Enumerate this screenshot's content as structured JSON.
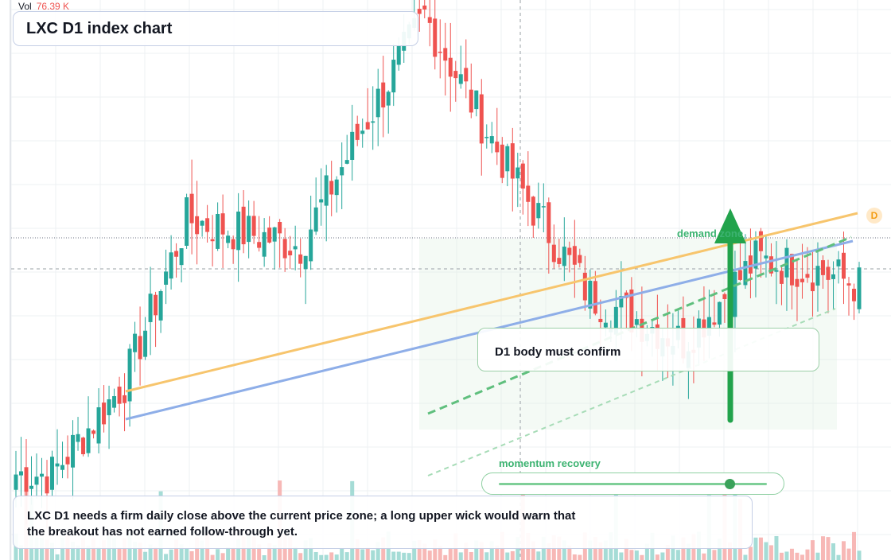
{
  "header": {
    "title": "LXC D1 index chart"
  },
  "volume_legend": {
    "label": "Vol",
    "value": "76.39 K"
  },
  "annotations": {
    "demand_zone_label": "demand zone",
    "confirm_note": "D1 body must confirm",
    "momentum_label": "momentum recovery",
    "momentum_level": 0.86,
    "footer_note": "LXC D1 needs a firm daily close above the current price zone; a long upper wick would warn that the breakout has not earned follow-through yet.",
    "timeframe_badge": "D"
  },
  "colors": {
    "up": "#26a69a",
    "down": "#ef5350",
    "orange_line": "#f7c56d",
    "blue_line": "#8eaee8",
    "green": "#22a34c"
  },
  "chart_data": {
    "type": "candlestick",
    "title": "LXC D1 index chart",
    "timeframe": "D1",
    "grid": true,
    "price_trend": [
      {
        "close": 10,
        "count": 8
      },
      {
        "close": 28,
        "count": 14
      },
      {
        "close": 60,
        "count": 12
      },
      {
        "close": 55,
        "count": 22
      },
      {
        "close": 78,
        "count": 12
      },
      {
        "close": 100,
        "count": 12
      },
      {
        "close": 70,
        "count": 16
      },
      {
        "close": 45,
        "count": 16
      },
      {
        "close": 36,
        "count": 18
      },
      {
        "close": 52,
        "count": 14
      },
      {
        "close": 50,
        "count": 12
      },
      {
        "close": 47,
        "count": 8
      }
    ]
  }
}
